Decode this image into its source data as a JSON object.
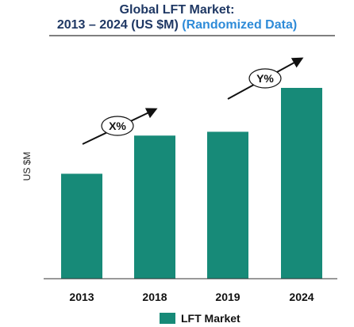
{
  "title": {
    "line1": "Global LFT Market:",
    "line2": "2013 – 2024 (US $M)",
    "line2_suffix": "(Randomized Data)"
  },
  "colors": {
    "bar": "#178a78",
    "title": "#1f3864",
    "subtitle_accent": "#2e8bd8"
  },
  "chart_data": {
    "type": "bar",
    "categories": [
      "2013",
      "2018",
      "2019",
      "2024"
    ],
    "series": [
      {
        "name": "LFT Market",
        "values": [
          55,
          75,
          77,
          100
        ]
      }
    ],
    "ylabel": "US $M",
    "xlabel": "",
    "ylim": [
      0,
      100
    ],
    "yticks_shown": false,
    "grid": false,
    "legend": "bottom-center",
    "annotations": [
      {
        "text": "X%",
        "between": [
          "2013",
          "2018"
        ]
      },
      {
        "text": "Y%",
        "between": [
          "2019",
          "2024"
        ]
      }
    ]
  }
}
